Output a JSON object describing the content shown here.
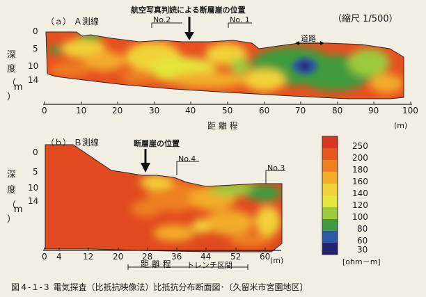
{
  "section_a": {
    "label": "（ａ） Ａ測線",
    "annotation": "航空写真判読による断層崖の位置",
    "scale": "（縮尺 1/500）",
    "station_left": "No.2",
    "station_right": "No. 1",
    "road_label": "道路",
    "depth_label": [
      "深",
      "度",
      "（",
      "m",
      "）"
    ],
    "y_ticks": [
      "0",
      "5",
      "10",
      "14"
    ],
    "x_ticks": [
      "0",
      "10",
      "20",
      "30",
      "40",
      "50",
      "60",
      "70",
      "80",
      "90",
      "100"
    ],
    "x_label": "距 離 程",
    "x_unit": "(m)"
  },
  "section_b": {
    "label": "（ｂ） Ｂ測線",
    "annotation": "断層崖の位置",
    "station_left": "No.4",
    "station_right": "No.3",
    "depth_label": [
      "深",
      "度",
      "（",
      "m",
      "）"
    ],
    "y_ticks": [
      "0",
      "5",
      "10",
      "14"
    ],
    "x_ticks": [
      "0",
      "4",
      "12",
      "20",
      "28",
      "36",
      "44",
      "52",
      "60"
    ],
    "x_label": "距 離 程",
    "x_unit": "(m)",
    "trench_label": "トレンチ区間"
  },
  "legend": {
    "values": [
      "250",
      "200",
      "180",
      "160",
      "140",
      "120",
      "100",
      "80",
      "60",
      "30"
    ],
    "unit": "[ohm－m]",
    "colors": [
      "#d8361f",
      "#e6571f",
      "#ee8024",
      "#f3ac2a",
      "#f2d238",
      "#e4e63b",
      "#9cca3d",
      "#3f9b3e",
      "#2c58a4",
      "#22226e"
    ]
  },
  "caption": "図４-１-３ 電気探査（比抵抗映像法）比抵抗分布断面図･〔久留米市宮園地区〕"
}
